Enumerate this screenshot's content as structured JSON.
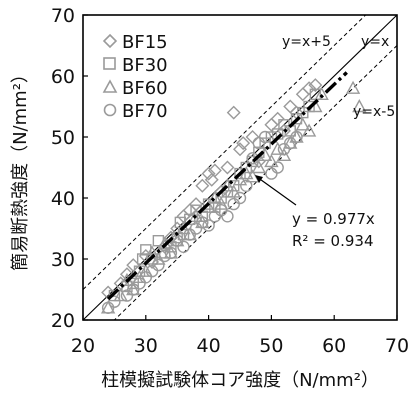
{
  "chart_data": {
    "type": "scatter",
    "title": "",
    "xlabel": "柱模擬試験体コア強度（N/mm²）",
    "ylabel": "簡易断熱強度（N/mm²）",
    "xlim": [
      20,
      70
    ],
    "ylim": [
      20,
      70
    ],
    "x_ticks": [
      "20",
      "30",
      "40",
      "50",
      "60",
      "70"
    ],
    "y_ticks": [
      "20",
      "30",
      "40",
      "50",
      "60",
      "70"
    ],
    "grid": false,
    "legend_position": "top-left",
    "series": [
      {
        "name": "BF15",
        "marker": "diamond",
        "color": "#9a9a9a",
        "points": [
          [
            24,
            24.5
          ],
          [
            26,
            26
          ],
          [
            27,
            27.5
          ],
          [
            28,
            29
          ],
          [
            30,
            30.5
          ],
          [
            31,
            29.5
          ],
          [
            33,
            32
          ],
          [
            34,
            33.5
          ],
          [
            35,
            35
          ],
          [
            36,
            37
          ],
          [
            37,
            38
          ],
          [
            38,
            39
          ],
          [
            39,
            42
          ],
          [
            40,
            44
          ],
          [
            40.5,
            43
          ],
          [
            41,
            44.5
          ],
          [
            42,
            41
          ],
          [
            43,
            45
          ],
          [
            44,
            54
          ],
          [
            45,
            48
          ],
          [
            45.5,
            49
          ],
          [
            47,
            50
          ],
          [
            48,
            46
          ],
          [
            50,
            52
          ],
          [
            51,
            53
          ],
          [
            52,
            51
          ],
          [
            53,
            55
          ],
          [
            54,
            54
          ],
          [
            55,
            57
          ],
          [
            56,
            58
          ],
          [
            57,
            58.5
          ]
        ]
      },
      {
        "name": "BF30",
        "marker": "square",
        "color": "#9a9a9a",
        "points": [
          [
            25,
            24
          ],
          [
            27,
            25.5
          ],
          [
            28,
            26
          ],
          [
            29,
            28
          ],
          [
            29.5,
            30
          ],
          [
            30,
            31.5
          ],
          [
            31,
            30
          ],
          [
            32,
            33
          ],
          [
            33,
            31
          ],
          [
            34,
            32
          ],
          [
            35,
            33.5
          ],
          [
            35.5,
            36
          ],
          [
            36,
            34
          ],
          [
            37,
            36.5
          ],
          [
            38,
            38
          ],
          [
            39,
            37
          ],
          [
            40,
            39
          ],
          [
            41,
            38.5
          ],
          [
            42,
            40
          ],
          [
            43,
            41
          ],
          [
            44,
            42
          ],
          [
            45,
            44
          ],
          [
            46,
            45
          ],
          [
            47,
            46
          ],
          [
            48,
            47.5
          ],
          [
            49,
            49
          ],
          [
            50,
            50
          ],
          [
            51,
            50.5
          ],
          [
            52,
            52
          ],
          [
            53,
            51
          ],
          [
            54,
            53
          ],
          [
            55,
            54
          ],
          [
            56,
            55
          ],
          [
            57,
            57
          ]
        ]
      },
      {
        "name": "BF60",
        "marker": "triangle",
        "color": "#9a9a9a",
        "points": [
          [
            24,
            22
          ],
          [
            26,
            24
          ],
          [
            27,
            26.5
          ],
          [
            28,
            25
          ],
          [
            29,
            27
          ],
          [
            30,
            28
          ],
          [
            31,
            31
          ],
          [
            32,
            30
          ],
          [
            33,
            32.5
          ],
          [
            34,
            31
          ],
          [
            35,
            33
          ],
          [
            36,
            35
          ],
          [
            37,
            34
          ],
          [
            38,
            37
          ],
          [
            39,
            36
          ],
          [
            40,
            38.5
          ],
          [
            41,
            40
          ],
          [
            42,
            39
          ],
          [
            43,
            42
          ],
          [
            44,
            41
          ],
          [
            45,
            43
          ],
          [
            46,
            44
          ],
          [
            47,
            43.5
          ],
          [
            48,
            45
          ],
          [
            49,
            47
          ],
          [
            50,
            46
          ],
          [
            51,
            48
          ],
          [
            52,
            47
          ],
          [
            53,
            49
          ],
          [
            54,
            50
          ],
          [
            55,
            52
          ],
          [
            56,
            51
          ],
          [
            57,
            55
          ],
          [
            58,
            57
          ],
          [
            63,
            58
          ],
          [
            64,
            55
          ]
        ]
      },
      {
        "name": "BF70",
        "marker": "circle",
        "color": "#9a9a9a",
        "points": [
          [
            24,
            22
          ],
          [
            25,
            23
          ],
          [
            27,
            24
          ],
          [
            28,
            25
          ],
          [
            29,
            26
          ],
          [
            30,
            27
          ],
          [
            31,
            28
          ],
          [
            32,
            29
          ],
          [
            33,
            30.5
          ],
          [
            34,
            31
          ],
          [
            35,
            33
          ],
          [
            36,
            32
          ],
          [
            37,
            34
          ],
          [
            38,
            35
          ],
          [
            39,
            36
          ],
          [
            40,
            35.5
          ],
          [
            41,
            37
          ],
          [
            42,
            38
          ],
          [
            43,
            37
          ],
          [
            44,
            39
          ],
          [
            45,
            40
          ],
          [
            46,
            42
          ],
          [
            47,
            46.5
          ],
          [
            48,
            49
          ],
          [
            49,
            50
          ],
          [
            50,
            44
          ],
          [
            51,
            45
          ],
          [
            52,
            48
          ],
          [
            53,
            49
          ],
          [
            54,
            50
          ]
        ]
      }
    ],
    "reference_lines": [
      {
        "label": "y=x+5",
        "slope": 1,
        "intercept": 5,
        "style": "dashed"
      },
      {
        "label": "y=x",
        "slope": 1,
        "intercept": 0,
        "style": "solid"
      },
      {
        "label": "y=x-5",
        "slope": 1,
        "intercept": -5,
        "style": "dashed"
      }
    ],
    "trendline": {
      "slope": 0.977,
      "x_range": [
        24,
        62
      ],
      "style": "thick-dashed"
    },
    "annotations": {
      "equation": "y = 0.977x",
      "r_squared": "R² = 0.934"
    }
  }
}
